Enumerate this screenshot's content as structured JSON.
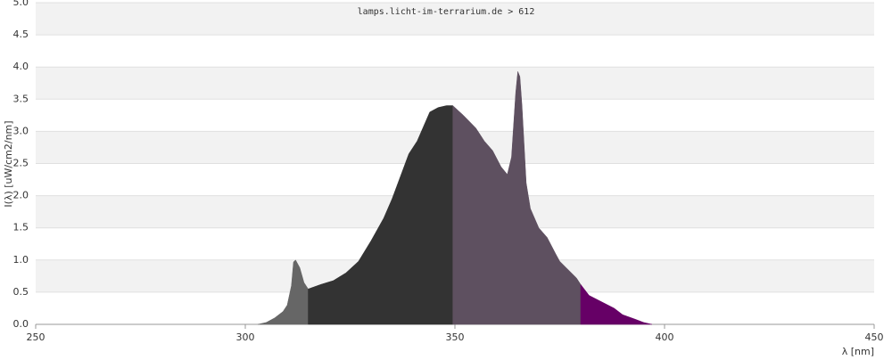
{
  "chart_data": {
    "type": "area",
    "title": "lamps.licht-im-terrarium.de > 612",
    "x_label": "λ [nm]",
    "y_label": "I(λ)  [uW/cm2/nm]",
    "xlim": [
      250,
      450
    ],
    "xticks": [
      250,
      300,
      350,
      400,
      450
    ],
    "ylim": [
      0,
      5
    ],
    "yticks": [
      {
        "value": 0,
        "label": "0.0"
      },
      0.5,
      {
        "value": 1,
        "label": "1.0"
      },
      1.5,
      {
        "value": 2,
        "label": "2.0"
      },
      2.5,
      {
        "value": 3,
        "label": "3.0"
      },
      3.5,
      {
        "value": 4,
        "label": "4.0"
      },
      4.5,
      {
        "value": 5,
        "label": "5.0"
      }
    ],
    "grid": true,
    "series": [
      {
        "color": "#666666",
        "x": [
          303,
          305,
          307,
          309,
          310,
          311,
          311.5,
          312,
          313,
          314,
          315
        ],
        "values": [
          0,
          0.03,
          0.1,
          0.2,
          0.3,
          0.6,
          0.97,
          1.0,
          0.88,
          0.65,
          0.55
        ]
      },
      {
        "color": "#333333",
        "x": [
          315,
          318,
          321,
          324,
          327,
          330,
          333,
          335,
          337,
          339,
          341,
          343,
          344,
          346,
          348,
          349.5
        ],
        "values": [
          0.55,
          0.62,
          0.68,
          0.8,
          0.98,
          1.3,
          1.65,
          1.95,
          2.3,
          2.65,
          2.85,
          3.15,
          3.3,
          3.37,
          3.4,
          3.4
        ]
      },
      {
        "color": "#5e5060",
        "x": [
          349.5,
          352,
          355,
          357,
          359,
          361,
          362.5,
          363.5,
          364.5,
          365,
          365.5,
          366,
          367,
          368,
          370,
          372,
          374,
          375,
          377,
          379,
          380
        ],
        "values": [
          3.4,
          3.25,
          3.05,
          2.85,
          2.7,
          2.45,
          2.33,
          2.6,
          3.6,
          3.93,
          3.85,
          3.4,
          2.2,
          1.8,
          1.5,
          1.35,
          1.1,
          0.98,
          0.85,
          0.72,
          0.62
        ]
      },
      {
        "color": "#660066",
        "x": [
          380,
          382,
          385,
          388,
          390,
          393,
          395,
          397
        ],
        "values": [
          0.62,
          0.45,
          0.35,
          0.25,
          0.15,
          0.08,
          0.03,
          0
        ]
      }
    ]
  }
}
